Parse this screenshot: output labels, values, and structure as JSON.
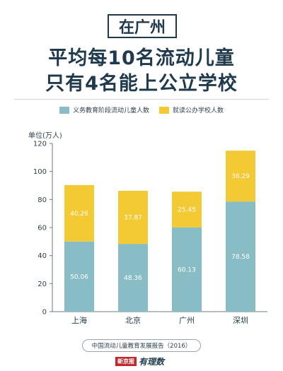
{
  "header": {
    "tag": "在广州",
    "line1": "平均每10名流动儿童",
    "line2": "只有4名能上公立学校"
  },
  "colors": {
    "compulsory": "#88bdc6",
    "public": "#f3c934",
    "text": "#1f3a4d"
  },
  "chart_data": {
    "type": "bar",
    "stacked": true,
    "ylabel": "单位(万人)",
    "ylim": [
      0,
      120
    ],
    "yticks": [
      0,
      20,
      40,
      60,
      80,
      100,
      120
    ],
    "categories": [
      "上海",
      "北京",
      "广州",
      "深圳"
    ],
    "series": [
      {
        "name": "义务教育阶段流动儿童人数",
        "values": [
          50.06,
          48.36,
          60.13,
          78.58
        ]
      },
      {
        "name": "就读公办学校人数",
        "values": [
          40.26,
          37.87,
          25.45,
          36.29
        ]
      }
    ],
    "legend_position": "top-center",
    "grid": false
  },
  "source": "中国流动儿童教育发展报告（2016）",
  "logo": {
    "badge": "新京报",
    "script": "有理数"
  }
}
